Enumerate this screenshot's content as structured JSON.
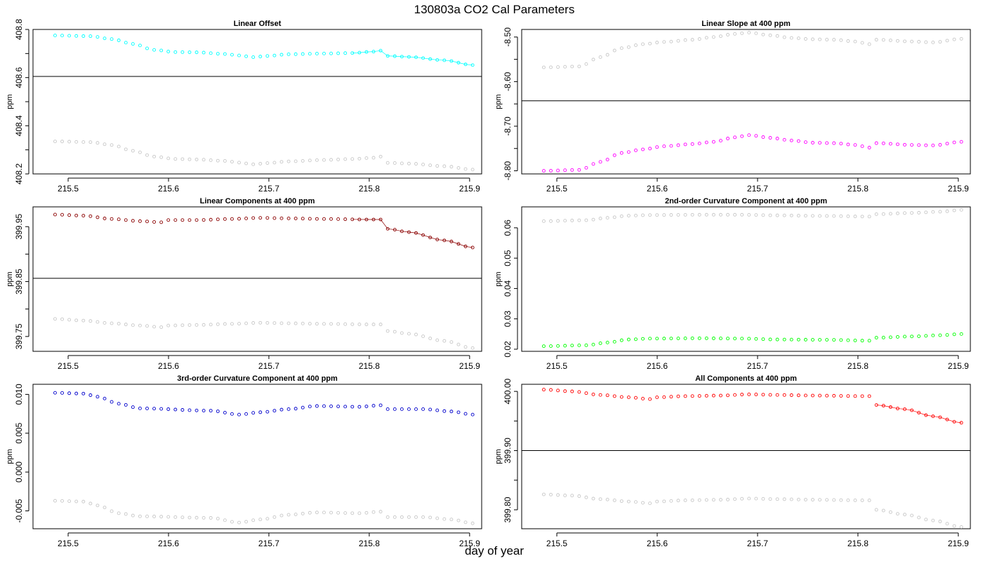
{
  "figure": {
    "title": "130803a   CO2 Cal Parameters",
    "xlabel": "day of year"
  },
  "colors": {
    "reference": "#c8c8c8",
    "axis": "#000000"
  },
  "chart_data": [
    {
      "type": "scatter",
      "title": "Linear Offset",
      "ylabel": "ppm",
      "xlabel": "",
      "xlim": [
        215.465,
        215.912
      ],
      "ylim": [
        408.2,
        408.8
      ],
      "x_ticks": [
        "215.5",
        "215.6",
        "215.7",
        "215.8",
        "215.9"
      ],
      "y_ticks": [
        "408.2",
        "408.4",
        "408.6",
        "408.8"
      ],
      "y_minor_ticks": [
        408.3,
        408.5,
        408.7
      ],
      "hline": 408.605,
      "x": {
        "start": 215.487,
        "end": 215.903,
        "count": 60
      },
      "series": [
        {
          "color": "#00ffff",
          "connect_last": 18,
          "keys": [
            [
              0,
              408.775
            ],
            [
              5,
              408.772
            ],
            [
              8,
              408.76
            ],
            [
              11,
              408.74
            ],
            [
              14,
              408.715
            ],
            [
              17,
              408.706
            ],
            [
              20,
              408.705
            ],
            [
              24,
              408.698
            ],
            [
              26,
              408.692
            ],
            [
              28,
              408.685
            ],
            [
              30,
              408.69
            ],
            [
              33,
              408.697
            ],
            [
              38,
              408.7
            ],
            [
              42,
              408.702
            ],
            [
              45,
              408.708
            ],
            [
              46,
              408.712
            ],
            [
              47,
              408.69
            ],
            [
              50,
              408.686
            ],
            [
              55,
              408.672
            ],
            [
              59,
              408.652
            ]
          ]
        },
        {
          "color": "#c8c8c8",
          "keys": [
            [
              0,
              408.335
            ],
            [
              5,
              408.332
            ],
            [
              8,
              408.32
            ],
            [
              11,
              408.296
            ],
            [
              14,
              408.272
            ],
            [
              17,
              408.262
            ],
            [
              20,
              408.26
            ],
            [
              24,
              408.254
            ],
            [
              26,
              408.247
            ],
            [
              28,
              408.24
            ],
            [
              30,
              408.245
            ],
            [
              33,
              408.252
            ],
            [
              38,
              408.258
            ],
            [
              42,
              408.262
            ],
            [
              45,
              408.267
            ],
            [
              46,
              408.272
            ],
            [
              47,
              408.246
            ],
            [
              50,
              408.243
            ],
            [
              55,
              408.232
            ],
            [
              59,
              408.218
            ]
          ]
        }
      ]
    },
    {
      "type": "scatter",
      "title": "Linear Slope at 400 ppm",
      "ylabel": "ppm",
      "xlabel": "",
      "xlim": [
        215.465,
        215.912
      ],
      "ylim": [
        -8.807,
        -8.483
      ],
      "x_ticks": [
        "215.5",
        "215.6",
        "215.7",
        "215.8",
        "215.9"
      ],
      "y_ticks": [
        "-8.80",
        "-8.70",
        "-8.60",
        "-8.50"
      ],
      "y_minor_ticks": [
        -8.75,
        -8.65,
        -8.55
      ],
      "hline": -8.643,
      "x": {
        "start": 215.487,
        "end": 215.903,
        "count": 60
      },
      "series": [
        {
          "color": "#ff00ff",
          "keys": [
            [
              0,
              -8.8
            ],
            [
              5,
              -8.798
            ],
            [
              8,
              -8.78
            ],
            [
              11,
              -8.76
            ],
            [
              14,
              -8.752
            ],
            [
              17,
              -8.745
            ],
            [
              21,
              -8.74
            ],
            [
              24,
              -8.735
            ],
            [
              27,
              -8.725
            ],
            [
              29,
              -8.72
            ],
            [
              32,
              -8.726
            ],
            [
              35,
              -8.732
            ],
            [
              38,
              -8.737
            ],
            [
              41,
              -8.738
            ],
            [
              44,
              -8.742
            ],
            [
              46,
              -8.748
            ],
            [
              47,
              -8.738
            ],
            [
              52,
              -8.742
            ],
            [
              55,
              -8.743
            ],
            [
              59,
              -8.735
            ]
          ]
        },
        {
          "color": "#c8c8c8",
          "keys": [
            [
              0,
              -8.568
            ],
            [
              5,
              -8.566
            ],
            [
              8,
              -8.545
            ],
            [
              11,
              -8.525
            ],
            [
              14,
              -8.516
            ],
            [
              17,
              -8.511
            ],
            [
              21,
              -8.506
            ],
            [
              24,
              -8.5
            ],
            [
              27,
              -8.493
            ],
            [
              29,
              -8.49
            ],
            [
              32,
              -8.496
            ],
            [
              35,
              -8.502
            ],
            [
              38,
              -8.505
            ],
            [
              41,
              -8.506
            ],
            [
              44,
              -8.51
            ],
            [
              46,
              -8.516
            ],
            [
              47,
              -8.506
            ],
            [
              52,
              -8.51
            ],
            [
              55,
              -8.512
            ],
            [
              59,
              -8.504
            ]
          ]
        }
      ]
    },
    {
      "type": "scatter",
      "title": "Linear Components at 400 ppm",
      "ylabel": "ppm",
      "xlabel": "",
      "xlim": [
        215.465,
        215.912
      ],
      "ylim": [
        399.723,
        399.986
      ],
      "x_ticks": [
        "215.5",
        "215.6",
        "215.7",
        "215.8",
        "215.9"
      ],
      "y_ticks": [
        "399.75",
        "399.85",
        "399.95"
      ],
      "y_minor_ticks": [
        399.8,
        399.9
      ],
      "hline": 399.856,
      "x": {
        "start": 215.487,
        "end": 215.903,
        "count": 60
      },
      "series": [
        {
          "color": "#8b0000",
          "connect_last": 18,
          "keys": [
            [
              0,
              399.972
            ],
            [
              4,
              399.97
            ],
            [
              8,
              399.964
            ],
            [
              12,
              399.96
            ],
            [
              15,
              399.958
            ],
            [
              16,
              399.962
            ],
            [
              20,
              399.962
            ],
            [
              25,
              399.964
            ],
            [
              29,
              399.966
            ],
            [
              33,
              399.965
            ],
            [
              38,
              399.964
            ],
            [
              44,
              399.963
            ],
            [
              46,
              399.963
            ],
            [
              47,
              399.946
            ],
            [
              50,
              399.94
            ],
            [
              55,
              399.925
            ],
            [
              59,
              399.912
            ]
          ]
        },
        {
          "color": "#c8c8c8",
          "keys": [
            [
              0,
              399.782
            ],
            [
              4,
              399.779
            ],
            [
              8,
              399.774
            ],
            [
              12,
              399.77
            ],
            [
              15,
              399.767
            ],
            [
              16,
              399.77
            ],
            [
              20,
              399.771
            ],
            [
              25,
              399.773
            ],
            [
              29,
              399.775
            ],
            [
              33,
              399.774
            ],
            [
              38,
              399.773
            ],
            [
              44,
              399.772
            ],
            [
              46,
              399.772
            ],
            [
              47,
              399.76
            ],
            [
              50,
              399.755
            ],
            [
              55,
              399.742
            ],
            [
              59,
              399.729
            ]
          ]
        }
      ]
    },
    {
      "type": "scatter",
      "title": "2nd-order Curvature Component at 400 ppm",
      "ylabel": "ppm",
      "xlabel": "",
      "xlim": [
        215.465,
        215.912
      ],
      "ylim": [
        0.0193,
        0.0669
      ],
      "x_ticks": [
        "215.5",
        "215.6",
        "215.7",
        "215.8",
        "215.9"
      ],
      "y_ticks": [
        "0.02",
        "0.03",
        "0.04",
        "0.05",
        "0.06"
      ],
      "y_minor_ticks": [],
      "hline": null,
      "x": {
        "start": 215.487,
        "end": 215.903,
        "count": 60
      },
      "series": [
        {
          "color": "#00ff00",
          "keys": [
            [
              0,
              0.021
            ],
            [
              6,
              0.0213
            ],
            [
              9,
              0.0222
            ],
            [
              12,
              0.0232
            ],
            [
              15,
              0.0235
            ],
            [
              22,
              0.0236
            ],
            [
              28,
              0.0235
            ],
            [
              33,
              0.0232
            ],
            [
              40,
              0.0231
            ],
            [
              46,
              0.0228
            ],
            [
              47,
              0.0238
            ],
            [
              52,
              0.0242
            ],
            [
              56,
              0.0246
            ],
            [
              59,
              0.025
            ]
          ]
        },
        {
          "color": "#c8c8c8",
          "keys": [
            [
              0,
              0.0622
            ],
            [
              6,
              0.0625
            ],
            [
              9,
              0.0633
            ],
            [
              12,
              0.064
            ],
            [
              15,
              0.0642
            ],
            [
              22,
              0.0643
            ],
            [
              28,
              0.0643
            ],
            [
              33,
              0.0641
            ],
            [
              40,
              0.0639
            ],
            [
              46,
              0.0637
            ],
            [
              47,
              0.0645
            ],
            [
              52,
              0.0649
            ],
            [
              56,
              0.0653
            ],
            [
              59,
              0.0659
            ]
          ]
        }
      ]
    },
    {
      "type": "scatter",
      "title": "3rd-order Curvature Component at 400 ppm",
      "ylabel": "ppm",
      "xlabel": "",
      "xlim": [
        215.465,
        215.912
      ],
      "ylim": [
        -0.0073,
        0.0113
      ],
      "x_ticks": [
        "215.5",
        "215.6",
        "215.7",
        "215.8",
        "215.9"
      ],
      "y_ticks": [
        "-0.005",
        "0.000",
        "0.005",
        "0.010"
      ],
      "y_minor_ticks": [],
      "hline": null,
      "x": {
        "start": 215.487,
        "end": 215.903,
        "count": 60
      },
      "series": [
        {
          "color": "#0000cc",
          "keys": [
            [
              0,
              0.0102
            ],
            [
              4,
              0.0101
            ],
            [
              6,
              0.0097
            ],
            [
              9,
              0.0088
            ],
            [
              12,
              0.0082
            ],
            [
              22,
              0.0079
            ],
            [
              26,
              0.0074
            ],
            [
              29,
              0.0077
            ],
            [
              33,
              0.0081
            ],
            [
              37,
              0.0085
            ],
            [
              43,
              0.0084
            ],
            [
              46,
              0.0086
            ],
            [
              47,
              0.0081
            ],
            [
              52,
              0.0081
            ],
            [
              56,
              0.0078
            ],
            [
              59,
              0.0074
            ]
          ]
        },
        {
          "color": "#c8c8c8",
          "keys": [
            [
              0,
              -0.0037
            ],
            [
              4,
              -0.0038
            ],
            [
              6,
              -0.0043
            ],
            [
              9,
              -0.0053
            ],
            [
              12,
              -0.0057
            ],
            [
              22,
              -0.0059
            ],
            [
              26,
              -0.0065
            ],
            [
              29,
              -0.0061
            ],
            [
              33,
              -0.0055
            ],
            [
              37,
              -0.0052
            ],
            [
              43,
              -0.0053
            ],
            [
              46,
              -0.0051
            ],
            [
              47,
              -0.0058
            ],
            [
              52,
              -0.0058
            ],
            [
              56,
              -0.0061
            ],
            [
              59,
              -0.0066
            ]
          ]
        }
      ]
    },
    {
      "type": "scatter",
      "title": "All Components at 400 ppm",
      "ylabel": "ppm",
      "xlabel": "",
      "xlim": [
        215.465,
        215.912
      ],
      "ylim": [
        399.768,
        400.012
      ],
      "x_ticks": [
        "215.5",
        "215.6",
        "215.7",
        "215.8",
        "215.9"
      ],
      "y_ticks": [
        "399.80",
        "399.90",
        "400.00"
      ],
      "y_minor_ticks": [
        399.85,
        399.95
      ],
      "hline": 399.9,
      "x": {
        "start": 215.487,
        "end": 215.903,
        "count": 60
      },
      "series": [
        {
          "color": "#ff0000",
          "connect_last": 13,
          "keys": [
            [
              0,
              400.003
            ],
            [
              4,
              400.0
            ],
            [
              8,
              399.994
            ],
            [
              12,
              399.99
            ],
            [
              15,
              399.987
            ],
            [
              16,
              399.99
            ],
            [
              20,
              399.992
            ],
            [
              25,
              399.993
            ],
            [
              29,
              399.995
            ],
            [
              33,
              399.994
            ],
            [
              38,
              399.993
            ],
            [
              45,
              399.992
            ],
            [
              46,
              399.992
            ],
            [
              47,
              399.977
            ],
            [
              51,
              399.97
            ],
            [
              55,
              399.958
            ],
            [
              59,
              399.947
            ]
          ]
        },
        {
          "color": "#c8c8c8",
          "keys": [
            [
              0,
              399.826
            ],
            [
              4,
              399.824
            ],
            [
              8,
              399.818
            ],
            [
              12,
              399.814
            ],
            [
              15,
              399.811
            ],
            [
              16,
              399.814
            ],
            [
              20,
              399.816
            ],
            [
              25,
              399.817
            ],
            [
              29,
              399.819
            ],
            [
              33,
              399.818
            ],
            [
              38,
              399.817
            ],
            [
              45,
              399.816
            ],
            [
              46,
              399.816
            ],
            [
              47,
              399.8
            ],
            [
              51,
              399.792
            ],
            [
              55,
              399.782
            ],
            [
              59,
              399.771
            ]
          ]
        }
      ]
    }
  ]
}
